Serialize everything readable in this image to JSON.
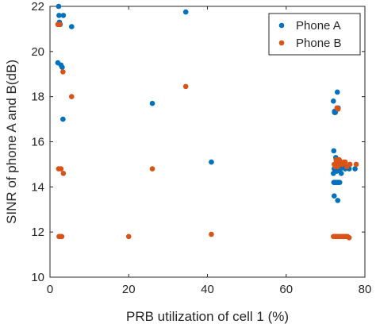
{
  "chart_data": {
    "type": "scatter",
    "title": "",
    "xlabel": "PRB utilization of cell 1 (%)",
    "ylabel": "SINR of phone A and B(dB)",
    "xlim": [
      0,
      80
    ],
    "ylim": [
      10,
      22
    ],
    "xticks": [
      0,
      20,
      40,
      60,
      80
    ],
    "yticks": [
      10,
      12,
      14,
      16,
      18,
      20,
      22
    ],
    "box": true,
    "grid": false,
    "legend_position": "top-right",
    "series": [
      {
        "name": "Phone A",
        "color": "#0072BD",
        "x": [
          2.2,
          2.3,
          2.4,
          2.6,
          3.1,
          3.3,
          5.5,
          2.0,
          2.8,
          3.4,
          26.0,
          34.5,
          41.0,
          72.0,
          72.3,
          72.5,
          73.0,
          73.2,
          72.1,
          72.4,
          72.6,
          72.2,
          72.8,
          73.5,
          72.0,
          72.3,
          72.1,
          72.5,
          72.7,
          73.0,
          72.4,
          73.3,
          72.9,
          73.6,
          74.0,
          72.2,
          73.1,
          72.6,
          73.8,
          74.5,
          75.0,
          76.0,
          77.5,
          72.3,
          73.4
        ],
        "y": [
          22.0,
          21.6,
          21.3,
          21.2,
          19.3,
          17.0,
          21.1,
          19.5,
          19.4,
          21.6,
          17.7,
          21.75,
          15.1,
          17.8,
          17.3,
          17.3,
          18.2,
          17.5,
          15.6,
          15.0,
          14.9,
          14.8,
          14.7,
          15.1,
          14.6,
          14.2,
          14.2,
          14.2,
          14.2,
          14.2,
          14.2,
          14.2,
          14.7,
          14.2,
          14.6,
          13.6,
          13.4,
          15.3,
          14.8,
          14.9,
          14.8,
          14.8,
          14.8,
          17.35,
          15.0
        ],
        "marker": "filled-circle"
      },
      {
        "name": "Phone B",
        "color": "#D95319",
        "x": [
          2.0,
          2.5,
          3.3,
          2.2,
          2.8,
          3.4,
          5.5,
          2.3,
          2.6,
          3.0,
          20.0,
          26.0,
          34.5,
          41.0,
          72.0,
          72.4,
          72.6,
          73.0,
          73.3,
          73.6,
          74.0,
          74.4,
          74.8,
          75.2,
          75.6,
          76.0,
          72.2,
          72.8,
          73.4,
          72.5,
          73.1,
          73.7,
          74.2,
          74.6,
          75.0,
          75.4,
          76.2,
          77.8,
          72.9,
          73.2,
          72.7,
          73.5
        ],
        "y": [
          21.2,
          21.2,
          19.1,
          14.8,
          14.8,
          14.6,
          18.0,
          11.8,
          11.8,
          11.8,
          11.8,
          14.8,
          18.45,
          11.9,
          11.8,
          11.8,
          11.8,
          11.8,
          11.8,
          11.8,
          11.8,
          11.8,
          11.8,
          11.8,
          11.8,
          11.75,
          15.0,
          15.1,
          15.1,
          14.9,
          14.9,
          15.0,
          15.0,
          15.1,
          15.1,
          14.9,
          15.0,
          15.0,
          17.5,
          17.45,
          15.2,
          15.2
        ],
        "marker": "filled-circle"
      }
    ]
  }
}
